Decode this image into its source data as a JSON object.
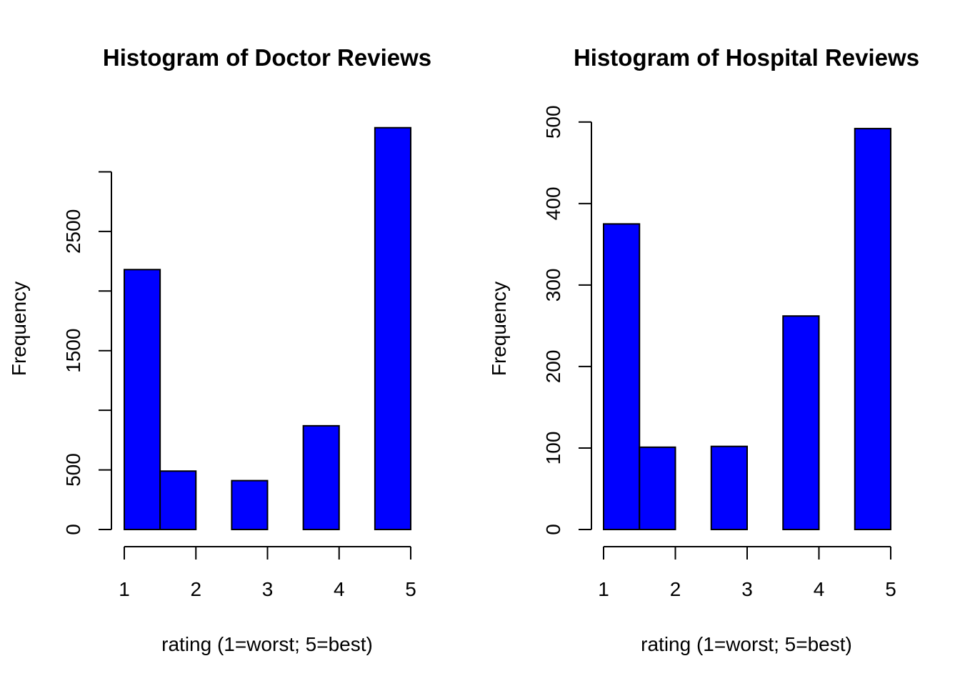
{
  "chart_data": [
    {
      "type": "bar",
      "title": "Histogram of Doctor Reviews",
      "xlabel": "rating (1=worst; 5=best)",
      "ylabel": "Frequency",
      "bar_color": "#0000ff",
      "bins": [
        [
          1,
          1.5
        ],
        [
          1.5,
          2
        ],
        [
          2.5,
          3
        ],
        [
          3.5,
          4
        ],
        [
          4.5,
          5
        ]
      ],
      "values": [
        2180,
        490,
        410,
        870,
        3370
      ],
      "xlim": [
        1,
        5
      ],
      "ylim": [
        0,
        3000
      ],
      "xticks": [
        1,
        2,
        3,
        4,
        5
      ],
      "xtick_labels": [
        "1",
        "2",
        "3",
        "4",
        "5"
      ],
      "yticks": [
        0,
        500,
        1000,
        1500,
        2000,
        2500,
        3000
      ],
      "ytick_labels": [
        "0",
        "500",
        "",
        "1500",
        "",
        "2500",
        ""
      ],
      "grid": false,
      "legend": "none"
    },
    {
      "type": "bar",
      "title": "Histogram of Hospital Reviews",
      "xlabel": "rating (1=worst; 5=best)",
      "ylabel": "Frequency",
      "bar_color": "#0000ff",
      "bins": [
        [
          1,
          1.5
        ],
        [
          1.5,
          2
        ],
        [
          2.5,
          3
        ],
        [
          3.5,
          4
        ],
        [
          4.5,
          5
        ]
      ],
      "values": [
        375,
        101,
        102,
        262,
        492
      ],
      "xlim": [
        1,
        5
      ],
      "ylim": [
        0,
        500
      ],
      "xticks": [
        1,
        2,
        3,
        4,
        5
      ],
      "xtick_labels": [
        "1",
        "2",
        "3",
        "4",
        "5"
      ],
      "yticks": [
        0,
        100,
        200,
        300,
        400,
        500
      ],
      "ytick_labels": [
        "0",
        "100",
        "200",
        "300",
        "400",
        "500"
      ],
      "grid": false,
      "legend": "none"
    }
  ]
}
